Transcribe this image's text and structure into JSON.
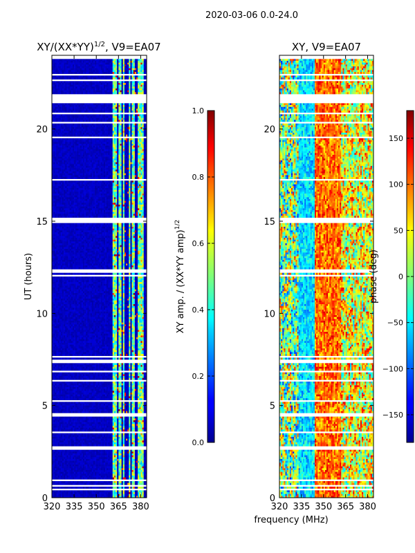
{
  "figure_title": "2020-03-06 0.0-24.0",
  "xlabel": "frequency (MHz)",
  "colors": {
    "background": "#ffffff",
    "frame": "#000000",
    "jet_dark_blue": "#00008f",
    "jet_dark_red": "#800000"
  },
  "chart_data": [
    {
      "type": "heatmap",
      "title_main": "XY/(XX*YY)",
      "title_exp": "1/2",
      "title_tail": ", V9=EA07",
      "xlabel": "frequency (MHz)",
      "ylabel": "UT (hours)",
      "xlim": [
        320,
        384
      ],
      "ylim": [
        0,
        24
      ],
      "xticks": [
        320,
        335,
        350,
        365,
        380
      ],
      "yticks": [
        0,
        5,
        10,
        15,
        20
      ],
      "quantity": "amplitude",
      "band_columns_mhz": [
        361.5,
        363,
        366,
        368.5,
        372.5,
        375,
        379,
        381
      ],
      "colorbar": {
        "label_main": "XY amp. / (XX*YY amp)",
        "label_exp": "1/2",
        "range": [
          0.0,
          1.0
        ],
        "ticks": [
          "0.0",
          "0.2",
          "0.4",
          "0.6",
          "0.8",
          "1.0"
        ],
        "tick_values": [
          0.0,
          0.2,
          0.4,
          0.6,
          0.8,
          1.0
        ]
      }
    },
    {
      "type": "heatmap",
      "title_main": "XY, V9=EA07",
      "title_exp": "",
      "title_tail": "",
      "xlabel": "frequency (MHz)",
      "ylabel": "",
      "xlim": [
        320,
        384
      ],
      "ylim": [
        0,
        24
      ],
      "xticks": [
        320,
        335,
        350,
        365,
        380
      ],
      "yticks": [
        0,
        5,
        10,
        15,
        20
      ],
      "quantity": "phase",
      "colorbar": {
        "label_main": "phase (deg)",
        "label_exp": "",
        "range": [
          -180,
          180
        ],
        "ticks": [
          "−150",
          "−100",
          "−50",
          "0",
          "50",
          "100",
          "150"
        ],
        "tick_values": [
          -150,
          -100,
          -50,
          0,
          50,
          100,
          150
        ]
      }
    }
  ],
  "flagged_time_intervals_hours": [
    [
      21.4,
      21.9
    ],
    [
      14.95,
      15.2
    ],
    [
      4.4,
      4.6
    ],
    [
      2.6,
      2.85
    ],
    [
      7.3,
      7.45
    ],
    [
      17.2,
      17.3
    ],
    [
      0.9,
      1.0
    ],
    [
      3.5,
      3.6
    ],
    [
      19.5,
      19.6
    ],
    [
      12.3,
      12.4
    ]
  ]
}
